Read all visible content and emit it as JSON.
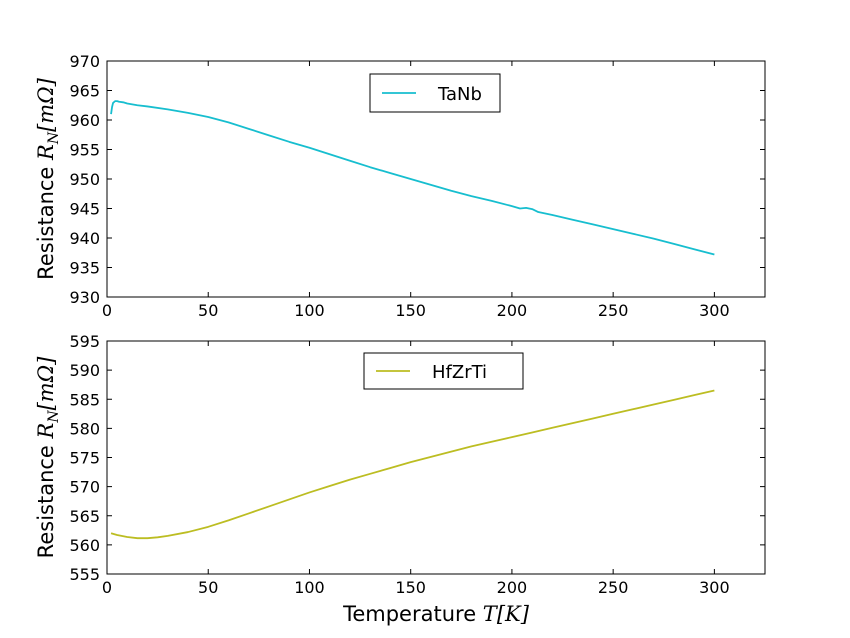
{
  "chart_data": [
    {
      "type": "line",
      "ylabel": "Resistance R_N[mΩ]",
      "ylabel_prefix": "Resistance ",
      "ylabel_symbol": "R",
      "ylabel_subscript": "N",
      "ylabel_unit": "[mΩ]",
      "xlim": [
        0,
        325
      ],
      "ylim": [
        930,
        970
      ],
      "xticks": [
        0,
        50,
        100,
        150,
        200,
        250,
        300
      ],
      "yticks": [
        930,
        935,
        940,
        945,
        950,
        955,
        960,
        965,
        970
      ],
      "grid": false,
      "legend_position": "upper-center",
      "series": [
        {
          "name": "TaNb",
          "color": "#17becf",
          "x": [
            2,
            2.5,
            3,
            4,
            5,
            6,
            8,
            10,
            15,
            20,
            30,
            40,
            50,
            60,
            70,
            80,
            90,
            100,
            110,
            120,
            130,
            140,
            150,
            160,
            170,
            180,
            190,
            200,
            204,
            207,
            210,
            213,
            220,
            230,
            240,
            250,
            260,
            270,
            280,
            290,
            300
          ],
          "y": [
            961.0,
            962.2,
            962.9,
            963.2,
            963.2,
            963.1,
            963.0,
            962.8,
            962.5,
            962.3,
            961.8,
            961.2,
            960.5,
            959.6,
            958.5,
            957.4,
            956.3,
            955.3,
            954.2,
            953.1,
            952.0,
            951.0,
            950.0,
            949.0,
            948.0,
            947.1,
            946.3,
            945.4,
            945.0,
            945.1,
            944.9,
            944.4,
            943.9,
            943.1,
            942.3,
            941.5,
            940.7,
            939.9,
            939.0,
            938.1,
            937.2
          ]
        }
      ]
    },
    {
      "type": "line",
      "xlabel": "Temperature T[K]",
      "xlabel_prefix": "Temperature ",
      "xlabel_symbol": "T",
      "xlabel_unit": "[K]",
      "ylabel": "Resistance R_N[mΩ]",
      "ylabel_prefix": "Resistance ",
      "ylabel_symbol": "R",
      "ylabel_subscript": "N",
      "ylabel_unit": "[mΩ]",
      "xlim": [
        0,
        325
      ],
      "ylim": [
        555,
        595
      ],
      "xticks": [
        0,
        50,
        100,
        150,
        200,
        250,
        300
      ],
      "yticks": [
        555,
        560,
        565,
        570,
        575,
        580,
        585,
        590,
        595
      ],
      "grid": false,
      "legend_position": "upper-center",
      "series": [
        {
          "name": "HfZrTi",
          "color": "#bcbd22",
          "x": [
            2,
            5,
            10,
            15,
            20,
            25,
            30,
            40,
            50,
            60,
            70,
            80,
            90,
            100,
            110,
            120,
            130,
            140,
            150,
            160,
            170,
            180,
            190,
            200,
            210,
            220,
            230,
            240,
            250,
            260,
            270,
            280,
            290,
            300
          ],
          "y": [
            562.0,
            561.7,
            561.35,
            561.15,
            561.15,
            561.3,
            561.55,
            562.2,
            563.1,
            564.2,
            565.4,
            566.6,
            567.8,
            569.0,
            570.1,
            571.2,
            572.2,
            573.2,
            574.2,
            575.1,
            576.0,
            576.9,
            577.7,
            578.5,
            579.3,
            580.1,
            580.9,
            581.7,
            582.5,
            583.3,
            584.1,
            584.9,
            585.7,
            586.5
          ]
        }
      ]
    }
  ]
}
